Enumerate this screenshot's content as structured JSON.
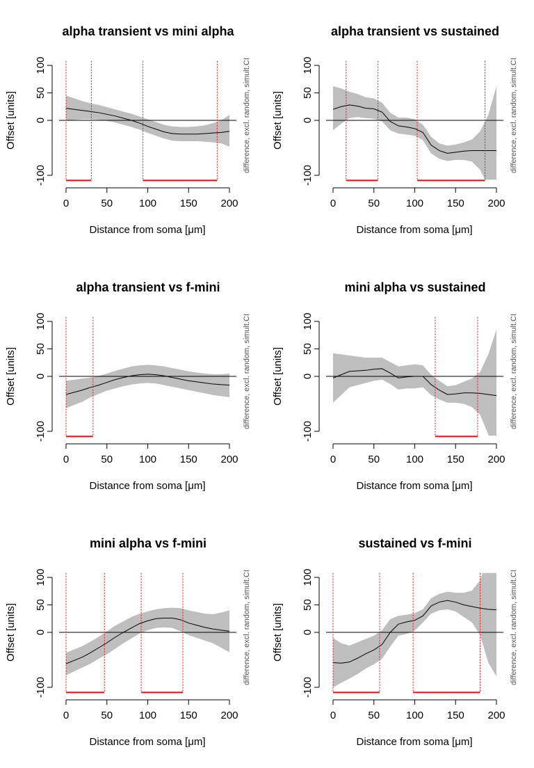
{
  "chart_data": [
    {
      "type": "line",
      "title": "alpha transient vs mini alpha",
      "xlabel": "Distance from soma [μm]",
      "ylabel": "Offset [units]",
      "annotation": "difference, excl. random, simult.CI",
      "x": [
        0,
        10,
        20,
        30,
        40,
        50,
        60,
        70,
        80,
        90,
        100,
        110,
        120,
        130,
        140,
        150,
        160,
        170,
        180,
        190,
        200
      ],
      "values": [
        22,
        20,
        18,
        16,
        14,
        11,
        8,
        4,
        0,
        -5,
        -11,
        -16,
        -21,
        -24,
        -25,
        -25,
        -25,
        -24,
        -23,
        -22,
        -20
      ],
      "upper": [
        45,
        40,
        35,
        31,
        28,
        24,
        20,
        16,
        12,
        7,
        2,
        -3,
        -8,
        -11,
        -12,
        -12,
        -11,
        -9,
        -5,
        0,
        10
      ],
      "lower": [
        0,
        1,
        2,
        2,
        1,
        -1,
        -4,
        -8,
        -12,
        -17,
        -23,
        -28,
        -33,
        -37,
        -38,
        -38,
        -38,
        -39,
        -40,
        -42,
        -48
      ],
      "significant": [
        [
          0,
          31
        ],
        [
          94,
          185
        ]
      ],
      "reference_line": 0,
      "color": "#000000",
      "band_color": "#bebebe",
      "significance_color": "#ff0000",
      "xlim": [
        0,
        200
      ],
      "ylim": [
        -108,
        108
      ],
      "xticks": [
        0,
        50,
        100,
        150,
        200
      ],
      "yticks": [
        -100,
        0,
        50,
        100
      ]
    },
    {
      "type": "line",
      "title": "alpha transient vs sustained",
      "xlabel": "Distance from soma [μm]",
      "ylabel": "Offset [units]",
      "annotation": "difference, excl. random, simult.CI",
      "x": [
        0,
        10,
        20,
        30,
        40,
        50,
        60,
        70,
        80,
        90,
        100,
        110,
        120,
        130,
        140,
        150,
        160,
        170,
        180,
        190,
        200
      ],
      "values": [
        20,
        25,
        28,
        26,
        22,
        21,
        15,
        -2,
        -10,
        -12,
        -15,
        -22,
        -45,
        -55,
        -60,
        -58,
        -56,
        -55,
        -55,
        -55,
        -55
      ],
      "upper": [
        62,
        58,
        52,
        48,
        42,
        40,
        32,
        14,
        5,
        5,
        2,
        -8,
        -30,
        -42,
        -46,
        -44,
        -40,
        -35,
        -20,
        10,
        62
      ],
      "lower": [
        -18,
        -6,
        4,
        6,
        4,
        3,
        -2,
        -18,
        -24,
        -26,
        -28,
        -36,
        -60,
        -70,
        -74,
        -72,
        -72,
        -75,
        -90,
        -120,
        -170
      ],
      "significant": [
        [
          16,
          55
        ],
        [
          103,
          186
        ]
      ],
      "reference_line": 0,
      "color": "#000000",
      "band_color": "#bebebe",
      "significance_color": "#ff0000",
      "xlim": [
        0,
        200
      ],
      "ylim": [
        -108,
        108
      ],
      "xticks": [
        0,
        50,
        100,
        150,
        200
      ],
      "yticks": [
        -100,
        0,
        50,
        100
      ]
    },
    {
      "type": "line",
      "title": "alpha transient vs f-mini",
      "xlabel": "Distance from soma [μm]",
      "ylabel": "Offset [units]",
      "annotation": "difference, excl. random, simult.CI",
      "x": [
        0,
        10,
        20,
        30,
        40,
        50,
        60,
        70,
        80,
        90,
        100,
        110,
        120,
        130,
        140,
        150,
        160,
        170,
        180,
        190,
        200
      ],
      "values": [
        -33,
        -29,
        -25,
        -20,
        -16,
        -11,
        -6,
        -2,
        1,
        3,
        4,
        3,
        1,
        -2,
        -5,
        -8,
        -10,
        -12,
        -14,
        -15,
        -16
      ],
      "upper": [
        -8,
        -6,
        -4,
        -2,
        1,
        5,
        10,
        14,
        18,
        20,
        21,
        20,
        18,
        15,
        12,
        9,
        7,
        5,
        4,
        4,
        5
      ],
      "lower": [
        -58,
        -52,
        -46,
        -38,
        -32,
        -26,
        -22,
        -18,
        -15,
        -13,
        -12,
        -13,
        -16,
        -19,
        -22,
        -25,
        -28,
        -31,
        -34,
        -36,
        -38
      ],
      "significant": [
        [
          0,
          33
        ]
      ],
      "reference_line": 0,
      "color": "#000000",
      "band_color": "#bebebe",
      "significance_color": "#ff0000",
      "xlim": [
        0,
        200
      ],
      "ylim": [
        -108,
        108
      ],
      "xticks": [
        0,
        50,
        100,
        150,
        200
      ],
      "yticks": [
        -100,
        0,
        50,
        100
      ]
    },
    {
      "type": "line",
      "title": "mini alpha vs sustained",
      "xlabel": "Distance from soma [μm]",
      "ylabel": "Offset [units]",
      "annotation": "difference, excl. random, simult.CI",
      "x": [
        0,
        10,
        20,
        30,
        40,
        50,
        60,
        70,
        80,
        90,
        100,
        110,
        120,
        130,
        140,
        150,
        160,
        170,
        180,
        190,
        200
      ],
      "values": [
        -3,
        3,
        9,
        10,
        11,
        13,
        14,
        6,
        -3,
        -1,
        0,
        0,
        -15,
        -25,
        -33,
        -32,
        -30,
        -30,
        -31,
        -33,
        -35
      ],
      "upper": [
        42,
        40,
        38,
        36,
        34,
        34,
        34,
        26,
        18,
        20,
        22,
        20,
        3,
        -8,
        -18,
        -16,
        -10,
        -4,
        8,
        40,
        85
      ],
      "lower": [
        -48,
        -34,
        -20,
        -16,
        -12,
        -8,
        -6,
        -14,
        -24,
        -22,
        -22,
        -20,
        -34,
        -42,
        -48,
        -48,
        -50,
        -56,
        -70,
        -106,
        -155
      ],
      "significant": [
        [
          125,
          177
        ]
      ],
      "reference_line": 0,
      "color": "#000000",
      "band_color": "#bebebe",
      "significance_color": "#ff0000",
      "xlim": [
        0,
        200
      ],
      "ylim": [
        -108,
        108
      ],
      "xticks": [
        0,
        50,
        100,
        150,
        200
      ],
      "yticks": [
        -100,
        0,
        50,
        100
      ]
    },
    {
      "type": "line",
      "title": "mini alpha vs f-mini",
      "xlabel": "Distance from soma [μm]",
      "ylabel": "Offset [units]",
      "annotation": "difference, excl. random, simult.CI",
      "x": [
        0,
        10,
        20,
        30,
        40,
        50,
        60,
        70,
        80,
        90,
        100,
        110,
        120,
        130,
        140,
        150,
        160,
        170,
        180,
        190,
        200
      ],
      "values": [
        -57,
        -51,
        -45,
        -37,
        -28,
        -19,
        -9,
        0,
        8,
        16,
        21,
        25,
        26,
        26,
        23,
        17,
        13,
        9,
        6,
        4,
        2
      ],
      "upper": [
        -37,
        -31,
        -25,
        -17,
        -8,
        2,
        12,
        20,
        28,
        34,
        38,
        42,
        44,
        45,
        44,
        40,
        37,
        34,
        33,
        36,
        40
      ],
      "lower": [
        -78,
        -71,
        -64,
        -57,
        -48,
        -40,
        -30,
        -20,
        -11,
        -2,
        4,
        8,
        9,
        8,
        2,
        -5,
        -10,
        -15,
        -20,
        -28,
        -36
      ],
      "significant": [
        [
          0,
          47
        ],
        [
          92,
          143
        ]
      ],
      "reference_line": 0,
      "color": "#000000",
      "band_color": "#bebebe",
      "significance_color": "#ff0000",
      "xlim": [
        0,
        200
      ],
      "ylim": [
        -108,
        108
      ],
      "xticks": [
        0,
        50,
        100,
        150,
        200
      ],
      "yticks": [
        -100,
        0,
        50,
        100
      ]
    },
    {
      "type": "line",
      "title": "sustained vs f-mini",
      "xlabel": "Distance from soma [μm]",
      "ylabel": "Offset [units]",
      "annotation": "difference, excl. random, simult.CI",
      "x": [
        0,
        10,
        20,
        30,
        40,
        50,
        60,
        70,
        80,
        90,
        100,
        110,
        120,
        130,
        140,
        150,
        160,
        170,
        180,
        190,
        200
      ],
      "values": [
        -55,
        -56,
        -54,
        -47,
        -39,
        -32,
        -22,
        0,
        15,
        19,
        22,
        30,
        48,
        55,
        58,
        55,
        50,
        47,
        44,
        42,
        41
      ],
      "upper": [
        -10,
        -20,
        -24,
        -18,
        -12,
        -6,
        4,
        24,
        30,
        32,
        35,
        42,
        62,
        70,
        74,
        72,
        72,
        76,
        95,
        140,
        180
      ],
      "lower": [
        -100,
        -92,
        -84,
        -76,
        -66,
        -58,
        -48,
        -26,
        -6,
        -3,
        3,
        18,
        34,
        40,
        42,
        38,
        28,
        18,
        -5,
        -55,
        -80
      ],
      "significant": [
        [
          0,
          57
        ],
        [
          98,
          180
        ]
      ],
      "reference_line": 0,
      "color": "#000000",
      "band_color": "#bebebe",
      "significance_color": "#ff0000",
      "xlim": [
        0,
        200
      ],
      "ylim": [
        -108,
        108
      ],
      "xticks": [
        0,
        50,
        100,
        150,
        200
      ],
      "yticks": [
        -100,
        0,
        50,
        100
      ]
    }
  ]
}
